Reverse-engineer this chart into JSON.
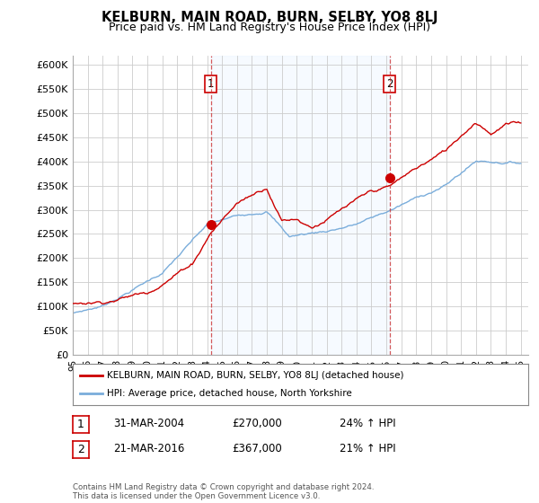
{
  "title": "KELBURN, MAIN ROAD, BURN, SELBY, YO8 8LJ",
  "subtitle": "Price paid vs. HM Land Registry's House Price Index (HPI)",
  "ylabel_ticks": [
    "£0",
    "£50K",
    "£100K",
    "£150K",
    "£200K",
    "£250K",
    "£300K",
    "£350K",
    "£400K",
    "£450K",
    "£500K",
    "£550K",
    "£600K"
  ],
  "ylim": [
    0,
    620000
  ],
  "ytick_vals": [
    0,
    50000,
    100000,
    150000,
    200000,
    250000,
    300000,
    350000,
    400000,
    450000,
    500000,
    550000,
    600000
  ],
  "sale1_x": 2004.25,
  "sale1_y": 270000,
  "sale2_x": 2016.22,
  "sale2_y": 367000,
  "red_line_color": "#cc0000",
  "blue_line_color": "#7aaddb",
  "shade_color": "#ddeeff",
  "bg_color": "#ffffff",
  "grid_color": "#cccccc",
  "legend_label_red": "KELBURN, MAIN ROAD, BURN, SELBY, YO8 8LJ (detached house)",
  "legend_label_blue": "HPI: Average price, detached house, North Yorkshire",
  "annotation1_date": "31-MAR-2004",
  "annotation1_price": "£270,000",
  "annotation1_hpi": "24% ↑ HPI",
  "annotation2_date": "21-MAR-2016",
  "annotation2_price": "£367,000",
  "annotation2_hpi": "21% ↑ HPI",
  "footer": "Contains HM Land Registry data © Crown copyright and database right 2024.\nThis data is licensed under the Open Government Licence v3.0.",
  "xmin": 1995,
  "xmax": 2025.5
}
